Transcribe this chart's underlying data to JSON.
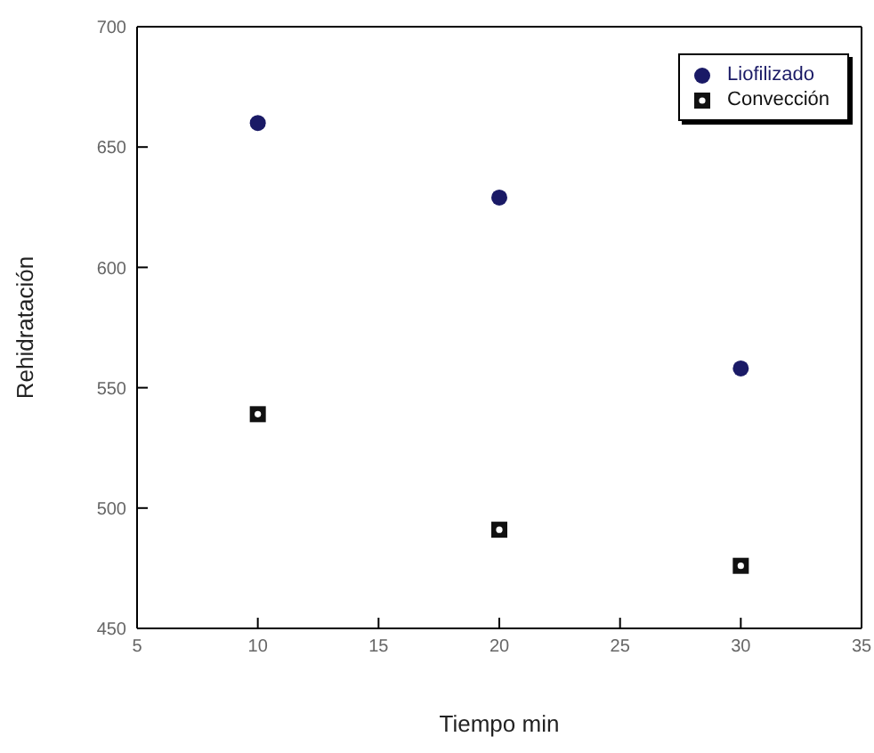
{
  "chart_data": {
    "type": "scatter",
    "xlabel": "Tiempo min",
    "ylabel": "Rehidratación",
    "xlim": [
      5,
      35
    ],
    "xticks": [
      5,
      10,
      15,
      20,
      25,
      30,
      35
    ],
    "ylim": [
      450,
      700
    ],
    "yticks": [
      450,
      500,
      550,
      600,
      650,
      700
    ],
    "grid": false,
    "legend": "top right",
    "series": [
      {
        "name": "Liofilizado",
        "color": "#1a1a66",
        "marker": "circle",
        "x": [
          10,
          20,
          30
        ],
        "values": [
          660,
          629,
          558
        ]
      },
      {
        "name": "Convección",
        "color": "#111111",
        "marker": "square",
        "x": [
          10,
          20,
          30
        ],
        "values": [
          539,
          491,
          476
        ]
      }
    ]
  }
}
